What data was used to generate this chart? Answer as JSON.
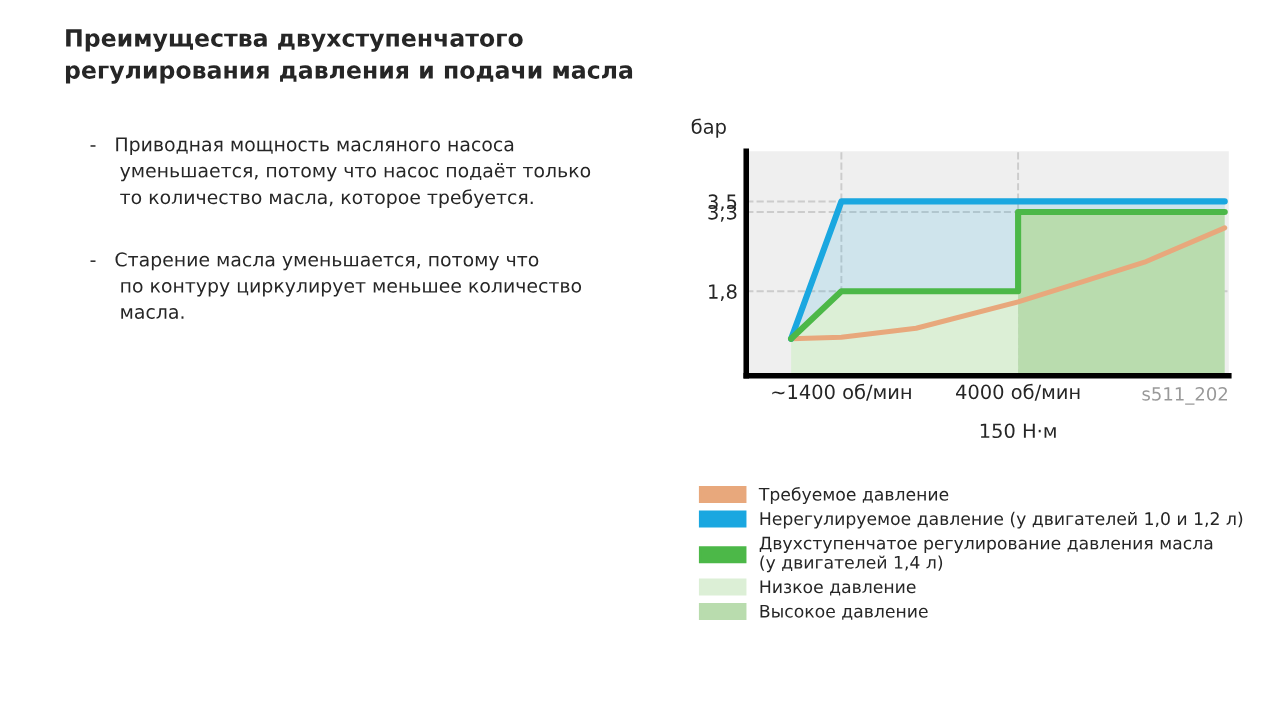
{
  "chart_data": {
    "type": "line",
    "title": "Преимущества двухступенчатого\nрегулирования давления и подачи масла",
    "ylabel": "бар",
    "annotations": [
      {
        "text": "150 Н·м",
        "x": 4000,
        "y": 0.2
      },
      "-   Приводная мощность масляного насоса\n     уменьшается, потому что насос подаёт только\n     то количество масла, которое требуется.",
      "-   Старение масла уменьшается, потому что\n     по контуру циркулирует меньшее количество\n     масла.",
      "s511_202"
    ],
    "series": [
      {
        "name": "Низкое давление",
        "type": "area",
        "color": "#dcefd6",
        "x": [
          660,
          1400,
          4000
        ],
        "values": [
          0.9,
          1.8,
          1.8
        ]
      },
      {
        "name": "Высокое давление",
        "type": "area",
        "color": "#b9dcae",
        "x": [
          4000,
          7040
        ],
        "values": [
          3.3,
          3.3
        ]
      },
      {
        "name": "Требуемое давление",
        "color": "#e8a87c",
        "x": [
          660,
          1400,
          2500,
          4000,
          5000,
          5860,
          7040
        ],
        "values": [
          0.9,
          0.93,
          1.1,
          1.6,
          2.0,
          2.35,
          3.0
        ]
      },
      {
        "name": "Нерегулируемое давление (у двигателей 1,0 и 1,2 л)",
        "color": "#1aa7e0",
        "x": [
          660,
          1400,
          4000,
          4000,
          7040
        ],
        "values": [
          0.9,
          3.5,
          3.5,
          3.5,
          3.5
        ],
        "lower": [
          0.9,
          1.8,
          1.8,
          3.3,
          3.3
        ],
        "upper": [
          0.9,
          3.5,
          3.5,
          3.5,
          3.5
        ]
      },
      {
        "name": "Двухступенчатое регулирование давления масла\n(у двигателей 1,4 л)",
        "color": "#4cb848",
        "x": [
          660,
          1400,
          4000,
          4000,
          7040
        ],
        "values": [
          0.9,
          1.8,
          1.8,
          3.3,
          3.3
        ]
      }
    ],
    "xlim": [
      0,
      7100
    ],
    "xticks": [
      {
        "value": 1400,
        "label": "~1400 об/мин"
      },
      {
        "value": 4000,
        "label": "4000 об/мин"
      }
    ],
    "ylim": [
      0.2,
      4.45
    ],
    "yticks": [
      {
        "value": 1.8,
        "label": "1,8"
      },
      {
        "value": 3.3,
        "label": "3,3"
      },
      {
        "value": 3.5,
        "label": "3,5"
      }
    ],
    "grid": true,
    "legend": "bottom",
    "line_style": "solid",
    "marker": "none"
  }
}
